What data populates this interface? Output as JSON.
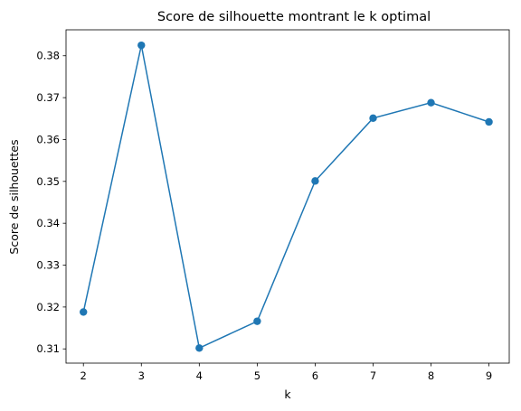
{
  "chart_data": {
    "type": "line",
    "title": "Score de silhouette montrant le k optimal",
    "xlabel": "k",
    "ylabel": "Score de silhouettes",
    "x": [
      2,
      3,
      4,
      5,
      6,
      7,
      8,
      9
    ],
    "series": [
      {
        "values": [
          0.3188,
          0.3825,
          0.3102,
          0.3166,
          0.3501,
          0.3651,
          0.3688,
          0.3642
        ],
        "color": "#1f77b4",
        "marker": "circle"
      }
    ],
    "xlim": [
      1.7,
      9.35
    ],
    "ylim": [
      0.3066,
      0.3862
    ],
    "xticks": [
      2,
      3,
      4,
      5,
      6,
      7,
      8,
      9
    ],
    "yticks": [
      0.31,
      0.32,
      0.33,
      0.34,
      0.35,
      0.36,
      0.37,
      0.38
    ],
    "ytick_labels": [
      "0.31",
      "0.32",
      "0.33",
      "0.34",
      "0.35",
      "0.36",
      "0.37",
      "0.38"
    ],
    "grid": false,
    "legend": false
  }
}
